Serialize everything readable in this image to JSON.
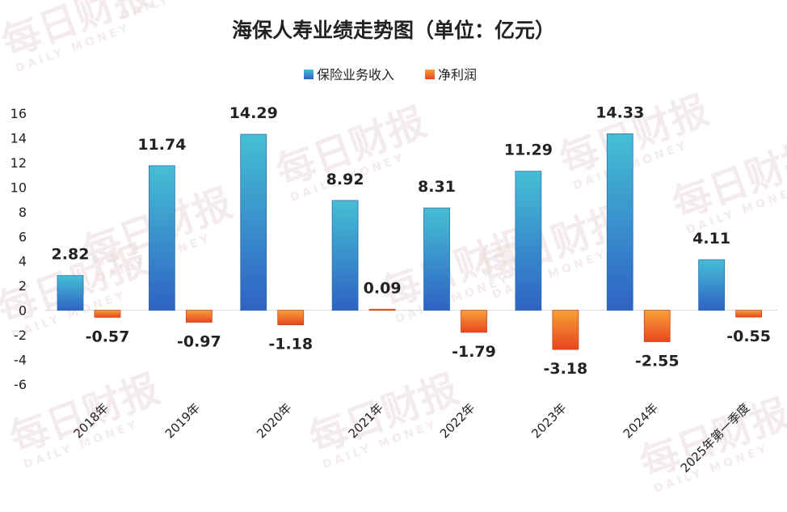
{
  "watermark": {
    "main": "每日财报",
    "sub": "DAILY MONEY"
  },
  "chart_data": {
    "type": "bar",
    "title": "海保人寿业绩走势图（单位：亿元）",
    "categories": [
      "2018年",
      "2019年",
      "2020年",
      "2021年",
      "2022年",
      "2023年",
      "2024年",
      "2025年第一季度"
    ],
    "series": [
      {
        "name": "保险业务收入",
        "values": [
          2.82,
          11.74,
          14.29,
          8.92,
          8.31,
          11.29,
          14.33,
          4.11
        ],
        "color": "#3aa6cf"
      },
      {
        "name": "净利润",
        "values": [
          -0.57,
          -0.97,
          -1.18,
          0.09,
          -1.79,
          -3.18,
          -2.55,
          -0.55
        ],
        "color": "#f06a2d"
      }
    ],
    "value_labels": [
      [
        "2.82",
        "11.74",
        "14.29",
        "8.92",
        "8.31",
        "11.29",
        "14.33",
        "4.11"
      ],
      [
        "-0.57",
        "-0.97",
        "-1.18",
        "0.09",
        "-1.79",
        "-3.18",
        "-2.55",
        "-0.55"
      ]
    ],
    "yticks": [
      "16",
      "14",
      "12",
      "10",
      "8",
      "6",
      "4",
      "2",
      "0",
      "-2",
      "-4",
      "-6"
    ],
    "ylim": [
      -6,
      16
    ],
    "legend_position": "top",
    "grid": false
  }
}
